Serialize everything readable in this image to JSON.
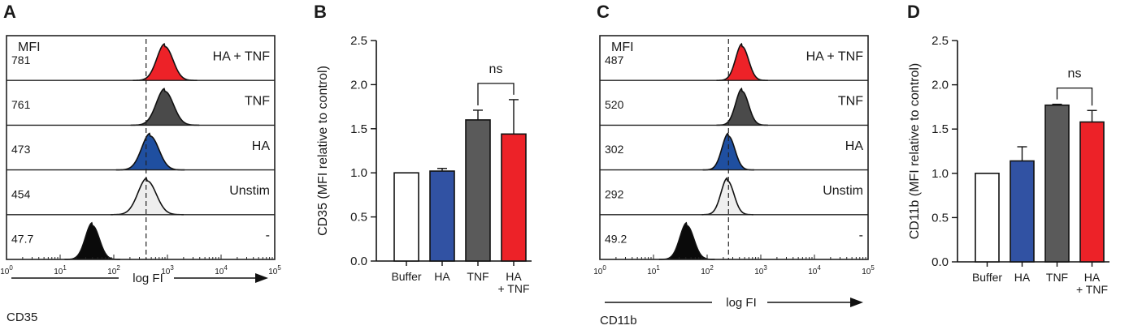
{
  "colors": {
    "hatnf": "#ed2228",
    "tnf": "#4a4a4a",
    "ha": "#1f4fa0",
    "unstim": "#eeeeee",
    "neg": "#0a0a0a",
    "buffer": "#ffffff"
  },
  "panels": {
    "A": {
      "letter": "A"
    },
    "B": {
      "letter": "B"
    },
    "C": {
      "letter": "C"
    },
    "D": {
      "letter": "D"
    }
  },
  "chart_data": [
    {
      "panel": "A",
      "type": "histogram",
      "header": "MFI",
      "xlabel": "log FI",
      "marker_label": "CD35",
      "x_scale": "log",
      "xlim_exp": [
        0,
        5
      ],
      "tick_base": "10",
      "tick_exponents": [
        "0",
        "1",
        "2",
        "3",
        "4",
        "5"
      ],
      "dashed_gate_value": 400,
      "rows": [
        {
          "name": "HA + TNF",
          "mfi": "781",
          "color": "#ed2228",
          "peak": 900,
          "width": 0.15
        },
        {
          "name": "TNF",
          "mfi": "761",
          "color": "#4a4a4a",
          "peak": 900,
          "width": 0.16
        },
        {
          "name": "HA",
          "mfi": "473",
          "color": "#1f4fa0",
          "peak": 480,
          "width": 0.16
        },
        {
          "name": "Unstim",
          "mfi": "454",
          "color": "#eeeeee",
          "peak": 420,
          "width": 0.17
        },
        {
          "name": "-",
          "mfi": "47.7",
          "color": "#0a0a0a",
          "peak": 40,
          "width": 0.13
        }
      ]
    },
    {
      "panel": "B",
      "type": "bar",
      "ylabel": "CD35 (MFI relative to control)",
      "ylim": [
        0,
        2.5
      ],
      "yticks": [
        "0.0",
        "0.5",
        "1.0",
        "1.5",
        "2.0",
        "2.5"
      ],
      "ytick_values": [
        0,
        0.5,
        1.0,
        1.5,
        2.0,
        2.5
      ],
      "categories": [
        "Buffer",
        "HA",
        "TNF",
        "HA\n+ TNF"
      ],
      "category_lines": [
        [
          "Buffer"
        ],
        [
          "HA"
        ],
        [
          "TNF"
        ],
        [
          "HA",
          "+ TNF"
        ]
      ],
      "values": [
        1.0,
        1.02,
        1.6,
        1.44
      ],
      "errors": [
        0,
        0.03,
        0.11,
        0.39
      ],
      "colors": [
        "#ffffff",
        "#3152a3",
        "#5a5a5a",
        "#ed2228"
      ],
      "annotation": {
        "text": "ns",
        "from": 2,
        "to": 3
      }
    },
    {
      "panel": "C",
      "type": "histogram",
      "header": "MFI",
      "xlabel": "log FI",
      "marker_label": "CD11b",
      "x_scale": "log",
      "xlim_exp": [
        0,
        5
      ],
      "tick_base": "10",
      "tick_exponents": [
        "0",
        "1",
        "2",
        "3",
        "4",
        "5"
      ],
      "dashed_gate_value": 250,
      "rows": [
        {
          "name": "HA + TNF",
          "mfi": "487",
          "color": "#ed2228",
          "peak": 450,
          "width": 0.12
        },
        {
          "name": "TNF",
          "mfi": "520",
          "color": "#4a4a4a",
          "peak": 450,
          "width": 0.12
        },
        {
          "name": "HA",
          "mfi": "302",
          "color": "#1f4fa0",
          "peak": 250,
          "width": 0.12
        },
        {
          "name": "Unstim",
          "mfi": "292",
          "color": "#eeeeee",
          "peak": 240,
          "width": 0.12
        },
        {
          "name": "-",
          "mfi": "49.2",
          "color": "#0a0a0a",
          "peak": 42,
          "width": 0.13
        }
      ]
    },
    {
      "panel": "D",
      "type": "bar",
      "ylabel": "CD11b (MFI relative to control)",
      "ylim": [
        0,
        2.5
      ],
      "yticks": [
        "0.0",
        "0.5",
        "1.0",
        "1.5",
        "2.0",
        "2.5"
      ],
      "ytick_values": [
        0,
        0.5,
        1.0,
        1.5,
        2.0,
        2.5
      ],
      "categories": [
        "Buffer",
        "HA",
        "TNF",
        "HA\n+ TNF"
      ],
      "category_lines": [
        [
          "Buffer"
        ],
        [
          "HA"
        ],
        [
          "TNF"
        ],
        [
          "HA",
          "+ TNF"
        ]
      ],
      "values": [
        1.0,
        1.14,
        1.77,
        1.58
      ],
      "errors": [
        0,
        0.16,
        0.01,
        0.13
      ],
      "colors": [
        "#ffffff",
        "#3152a3",
        "#5a5a5a",
        "#ed2228"
      ],
      "annotation": {
        "text": "ns",
        "from": 2,
        "to": 3
      }
    }
  ]
}
